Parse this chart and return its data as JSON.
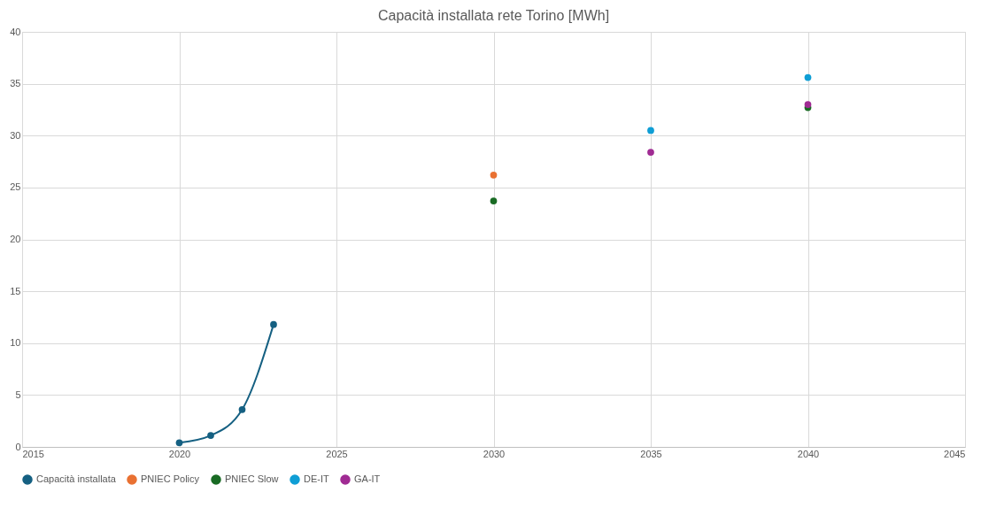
{
  "chart_data": {
    "type": "scatter",
    "title": "Capacità installata rete Torino [MWh]",
    "series": [
      {
        "name": "Capacità installata",
        "type": "line",
        "color": "#156082",
        "x": [
          2020,
          2021,
          2022,
          2023
        ],
        "values": [
          0.4,
          1.1,
          3.6,
          11.8
        ]
      },
      {
        "name": "PNIEC Policy",
        "color": "#e97132",
        "x": [
          2030
        ],
        "values": [
          26.2
        ]
      },
      {
        "name": "PNIEC Slow",
        "color": "#196b24",
        "x": [
          2030,
          2040
        ],
        "values": [
          23.7,
          32.7
        ]
      },
      {
        "name": "DE-IT",
        "color": "#0f9ed5",
        "x": [
          2035,
          2040
        ],
        "values": [
          30.5,
          35.6
        ]
      },
      {
        "name": "GA-IT",
        "color": "#a02b93",
        "x": [
          2035,
          2040
        ],
        "values": [
          28.4,
          33.0
        ]
      }
    ],
    "xlim": [
      2015,
      2045
    ],
    "xticks": [
      2015,
      2020,
      2025,
      2030,
      2035,
      2040,
      2045
    ],
    "ylim": [
      0,
      40
    ],
    "yticks": [
      0,
      5,
      10,
      15,
      20,
      25,
      30,
      35,
      40
    ],
    "grid": true,
    "legend": "bottom",
    "marker": "circle"
  }
}
